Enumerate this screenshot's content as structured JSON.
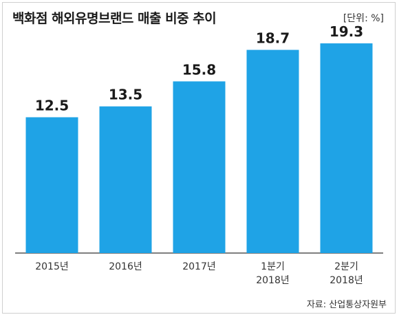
{
  "chart_data": {
    "type": "bar",
    "title": "백화점 해외유명브랜드 매출 비중 추이",
    "unit_label": "[단위: %]",
    "categories": [
      [
        "2015년"
      ],
      [
        "2016년"
      ],
      [
        "2017년"
      ],
      [
        "1분기",
        "2018년"
      ],
      [
        "2분기",
        "2018년"
      ]
    ],
    "values": [
      12.5,
      13.5,
      15.8,
      18.7,
      19.3
    ],
    "value_labels": [
      "12.5",
      "13.5",
      "15.8",
      "18.7",
      "19.3"
    ],
    "ylim": [
      0,
      20
    ],
    "grid": false,
    "bar_color": "#1fa3e6",
    "source": "자료: 산업통상자원부"
  }
}
